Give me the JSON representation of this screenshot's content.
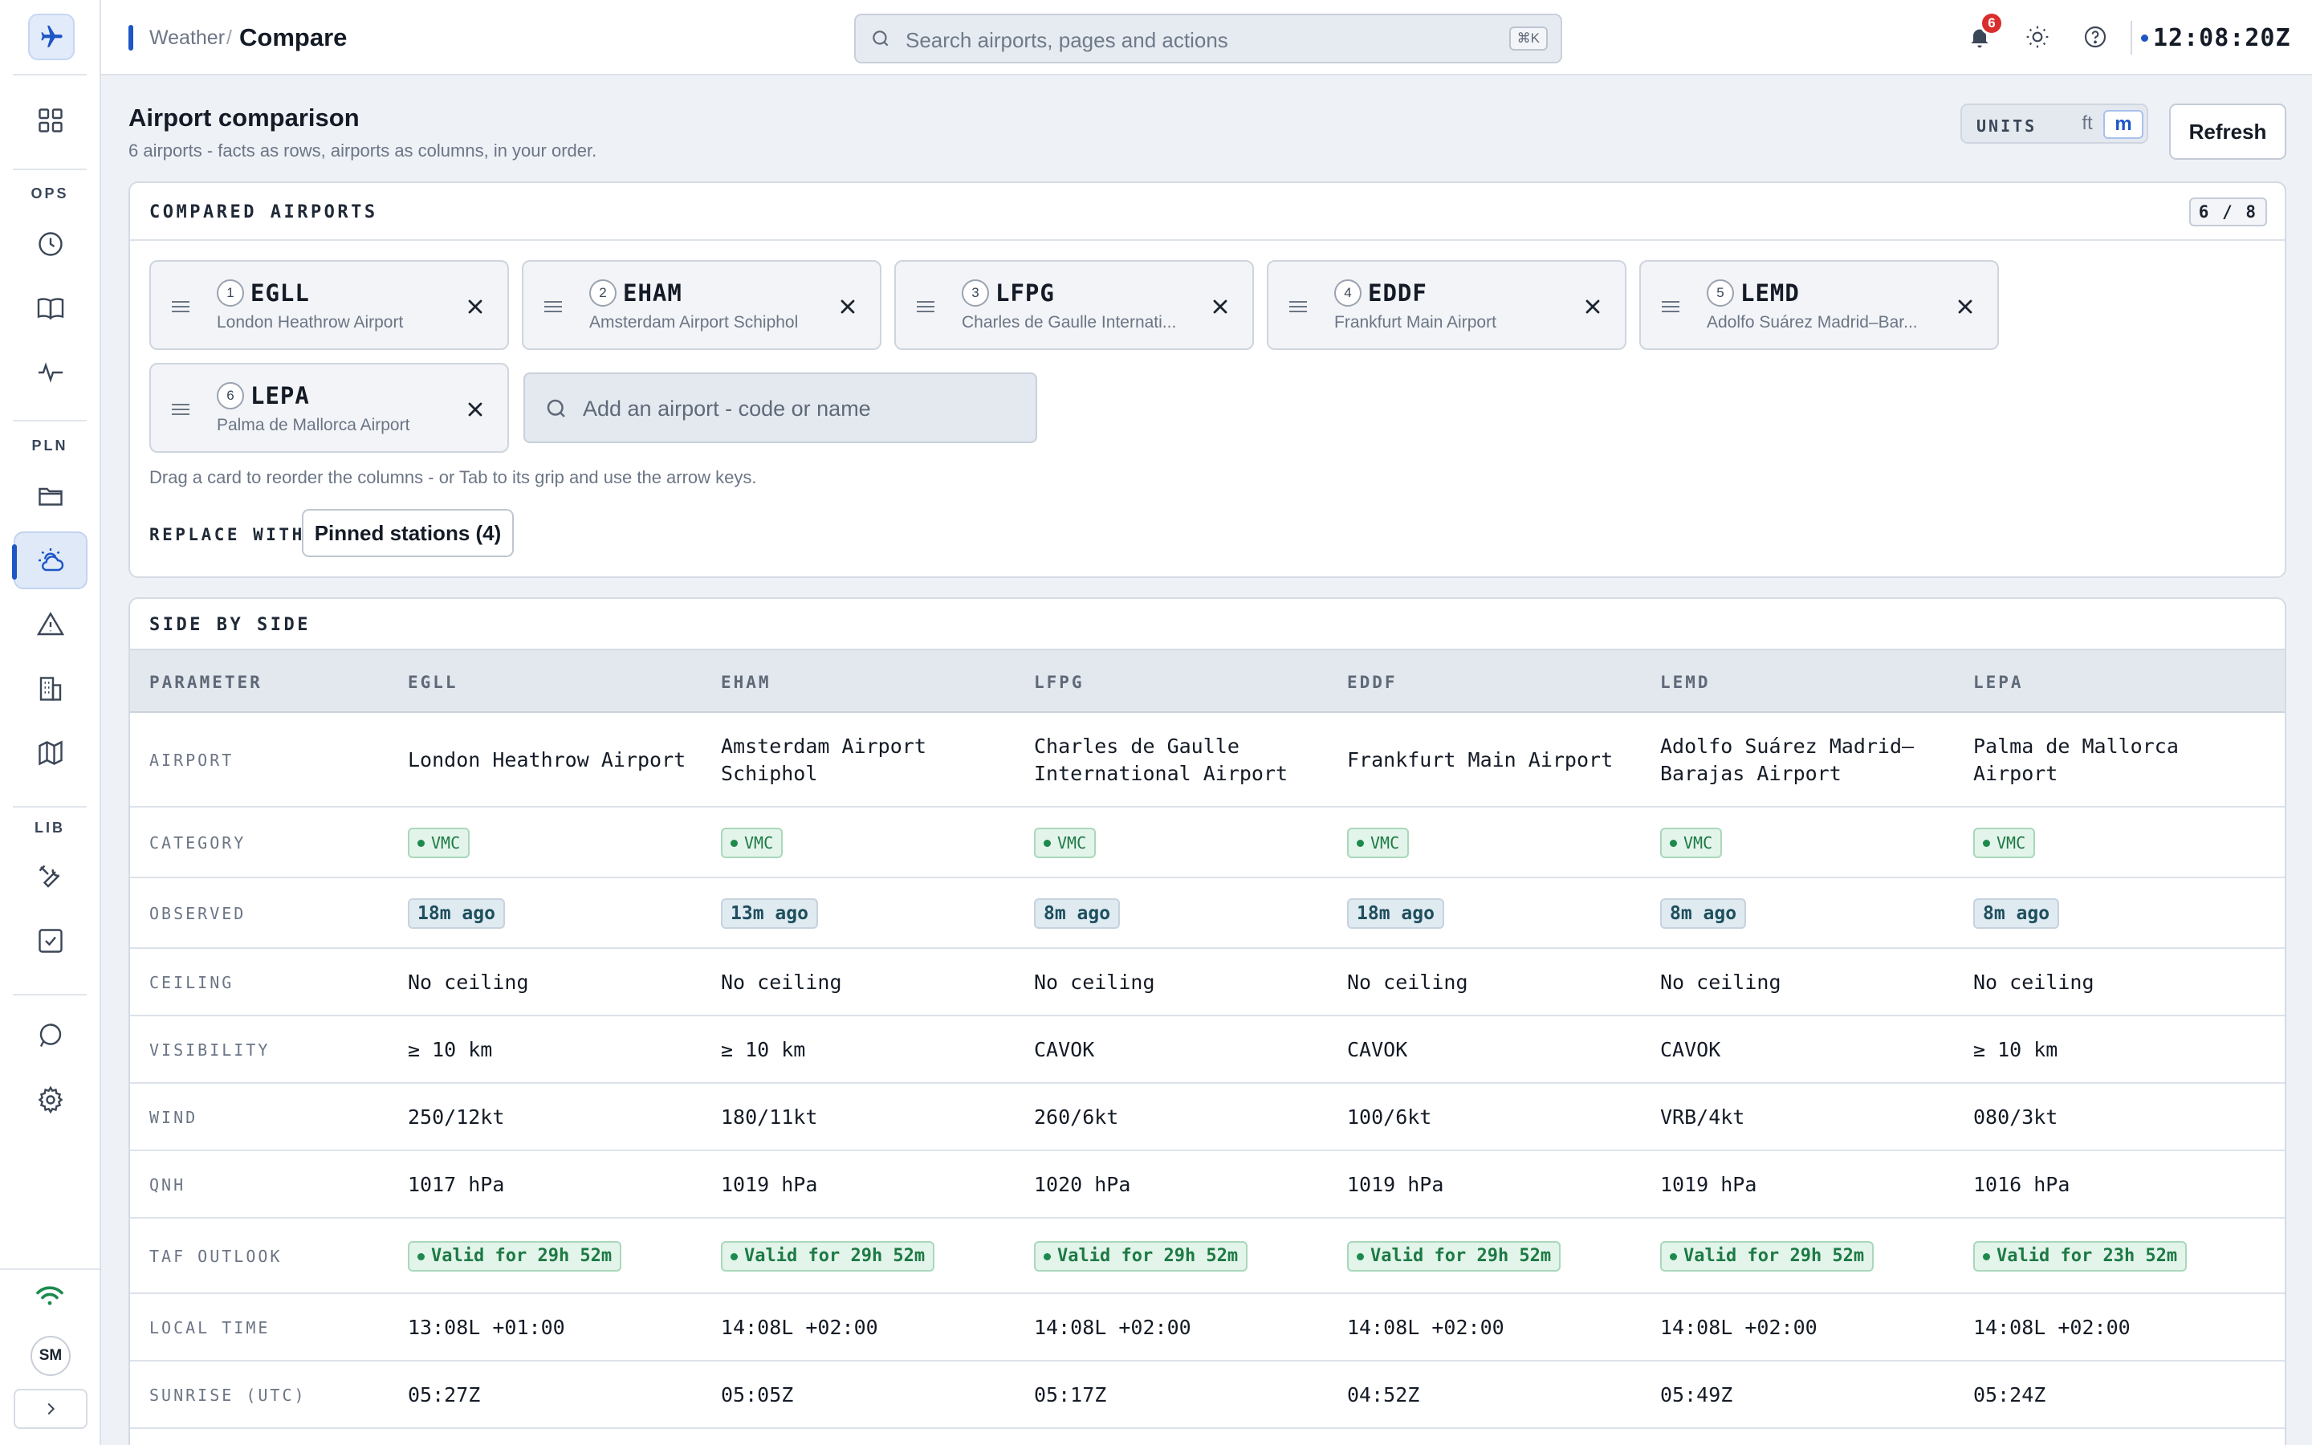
{
  "topbar": {
    "breadcrumb_parent": "Weather",
    "breadcrumb_separator": "/",
    "breadcrumb_current": "Compare",
    "search_placeholder": "Search airports, pages and actions",
    "search_shortcut": "⌘K",
    "notification_count": "6",
    "clock": "12:08:20Z"
  },
  "rail": {
    "section_ops": "OPS",
    "section_pln": "PLN",
    "section_lib": "LIB",
    "avatar_initials": "SM"
  },
  "page": {
    "title": "Airport comparison",
    "subtitle": "6 airports - facts as rows, airports as columns, in your order.",
    "units_label": "UNITS",
    "unit_ft": "ft",
    "unit_m": "m",
    "selected_unit": "m",
    "refresh_label": "Refresh"
  },
  "compared": {
    "heading": "COMPARED AIRPORTS",
    "count": "6 / 8",
    "airports": [
      {
        "index": "1",
        "code": "EGLL",
        "name": "London Heathrow Airport"
      },
      {
        "index": "2",
        "code": "EHAM",
        "name": "Amsterdam Airport Schiphol"
      },
      {
        "index": "3",
        "code": "LFPG",
        "name": "Charles de Gaulle Internati..."
      },
      {
        "index": "4",
        "code": "EDDF",
        "name": "Frankfurt Main Airport"
      },
      {
        "index": "5",
        "code": "LEMD",
        "name": "Adolfo Suárez Madrid–Bar..."
      },
      {
        "index": "6",
        "code": "LEPA",
        "name": "Palma de Mallorca Airport"
      }
    ],
    "add_placeholder": "Add an airport - code or name",
    "hint": "Drag a card to reorder the columns - or Tab to its grip and use the arrow keys.",
    "replace_label": "REPLACE WITH",
    "replace_button": "Pinned stations (4)"
  },
  "table": {
    "heading": "SIDE BY SIDE",
    "columns": [
      "PARAMETER",
      "EGLL",
      "EHAM",
      "LFPG",
      "EDDF",
      "LEMD",
      "LEPA"
    ],
    "rows": {
      "airport": {
        "label": "AIRPORT",
        "values": [
          "London Heathrow Airport",
          "Amsterdam Airport Schiphol",
          "Charles de Gaulle International Airport",
          "Frankfurt Main Airport",
          "Adolfo Suárez Madrid–Barajas Airport",
          "Palma de Mallorca Airport"
        ]
      },
      "category": {
        "label": "CATEGORY",
        "values": [
          "VMC",
          "VMC",
          "VMC",
          "VMC",
          "VMC",
          "VMC"
        ]
      },
      "observed": {
        "label": "OBSERVED",
        "values": [
          "18m ago",
          "13m ago",
          "8m ago",
          "18m ago",
          "8m ago",
          "8m ago"
        ]
      },
      "ceiling": {
        "label": "CEILING",
        "values": [
          "No ceiling",
          "No ceiling",
          "No ceiling",
          "No ceiling",
          "No ceiling",
          "No ceiling"
        ]
      },
      "visibility": {
        "label": "VISIBILITY",
        "values": [
          "≥ 10 km",
          "≥ 10 km",
          "CAVOK",
          "CAVOK",
          "CAVOK",
          "≥ 10 km"
        ]
      },
      "wind": {
        "label": "WIND",
        "values": [
          "250/12kt",
          "180/11kt",
          "260/6kt",
          "100/6kt",
          "VRB/4kt",
          "080/3kt"
        ]
      },
      "qnh": {
        "label": "QNH",
        "values": [
          "1017 hPa",
          "1019 hPa",
          "1020 hPa",
          "1019 hPa",
          "1019 hPa",
          "1016 hPa"
        ]
      },
      "taf": {
        "label": "TAF OUTLOOK",
        "values": [
          "Valid for 29h 52m",
          "Valid for 29h 52m",
          "Valid for 29h 52m",
          "Valid for 29h 52m",
          "Valid for 29h 52m",
          "Valid for 23h 52m"
        ]
      },
      "local_time": {
        "label": "LOCAL TIME",
        "values": [
          "13:08L +01:00",
          "14:08L +02:00",
          "14:08L +02:00",
          "14:08L +02:00",
          "14:08L +02:00",
          "14:08L +02:00"
        ]
      },
      "sunrise": {
        "label": "SUNRISE (UTC)",
        "values": [
          "05:27Z",
          "05:05Z",
          "05:17Z",
          "04:52Z",
          "05:49Z",
          "05:24Z"
        ]
      }
    }
  },
  "colors": {
    "accent": "#1e56c6",
    "vmc_green": "#1d7a45",
    "badge_red": "#d92d2d"
  }
}
